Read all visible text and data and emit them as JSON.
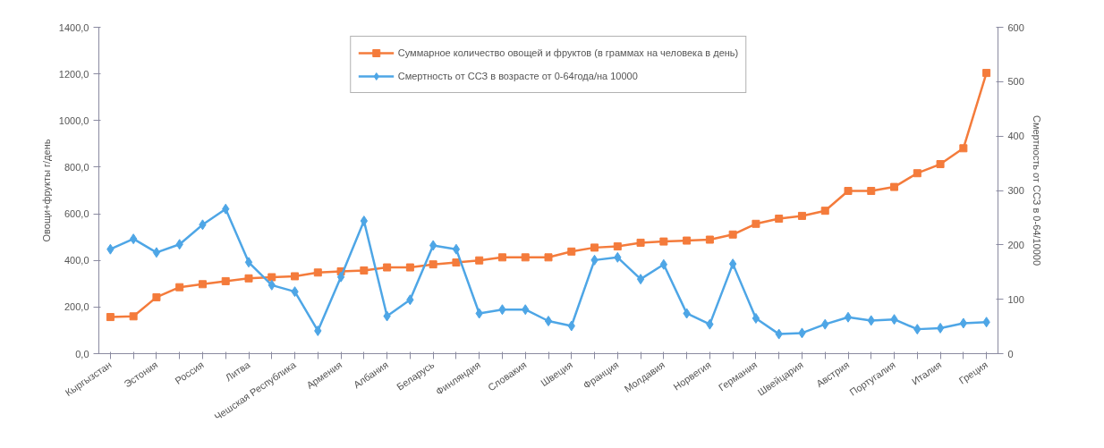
{
  "chart_data": {
    "type": "line",
    "ylabel": "Овощи+фрукты г/день",
    "y2label": "Смертность от ССЗ в 0-64/10000",
    "categories": [
      "Кыргызстан",
      null,
      "Эстония",
      null,
      "Россия",
      null,
      "Литва",
      null,
      "Чешская Республика",
      null,
      "Армения",
      null,
      "Албания",
      null,
      "Беларусь",
      null,
      "Финляндия",
      null,
      "Словакия",
      null,
      "Швеция",
      null,
      "Франция",
      null,
      "Молдавия",
      null,
      "Норвегия",
      null,
      "Германия",
      null,
      "Швейцария",
      null,
      "Австрия",
      null,
      "Португалия",
      null,
      "Италия",
      null,
      "Греция"
    ],
    "series": [
      {
        "name": "Суммарное количество овощей и фруктов (в граммах на человека в день)",
        "color": "#f47b3b",
        "marker": "square",
        "values": [
          157,
          160,
          242,
          285,
          298,
          311,
          323,
          328,
          332,
          348,
          353,
          357,
          370,
          370,
          383,
          391,
          400,
          413,
          413,
          413,
          438,
          455,
          460,
          476,
          481,
          485,
          489,
          511,
          557,
          579,
          591,
          613,
          698,
          698,
          715,
          774,
          813,
          881,
          1204
        ]
      },
      {
        "name": "Смертность от ССЗ в возрасте от 0-64года/на 10000",
        "color": "#4ea6e6",
        "marker": "diamond",
        "axis": "y2",
        "values": [
          192,
          211,
          186,
          201,
          237,
          266,
          168,
          126,
          114,
          42,
          141,
          244,
          69,
          99,
          199,
          192,
          74,
          81,
          81,
          60,
          51,
          172,
          177,
          137,
          164,
          74,
          54,
          165,
          65,
          36,
          38,
          54,
          67,
          61,
          63,
          45,
          47,
          56,
          58
        ]
      }
    ],
    "ylim": [
      0,
      1400
    ],
    "yticks": [
      {
        "value": 0,
        "label": "0,0"
      },
      {
        "value": 200,
        "label": "200,0"
      },
      {
        "value": 400,
        "label": "400,0"
      },
      {
        "value": 600,
        "label": "600,0"
      },
      {
        "value": 800,
        "label": "800,0"
      },
      {
        "value": 1000,
        "label": "1000,0"
      },
      {
        "value": 1200,
        "label": "1200,0"
      },
      {
        "value": 1400,
        "label": "1400,0"
      }
    ],
    "y2lim": [
      0,
      600
    ],
    "y2ticks": [
      0,
      100,
      200,
      300,
      400,
      500,
      600
    ],
    "legend": "top",
    "grid": false,
    "line_style": "solid"
  }
}
